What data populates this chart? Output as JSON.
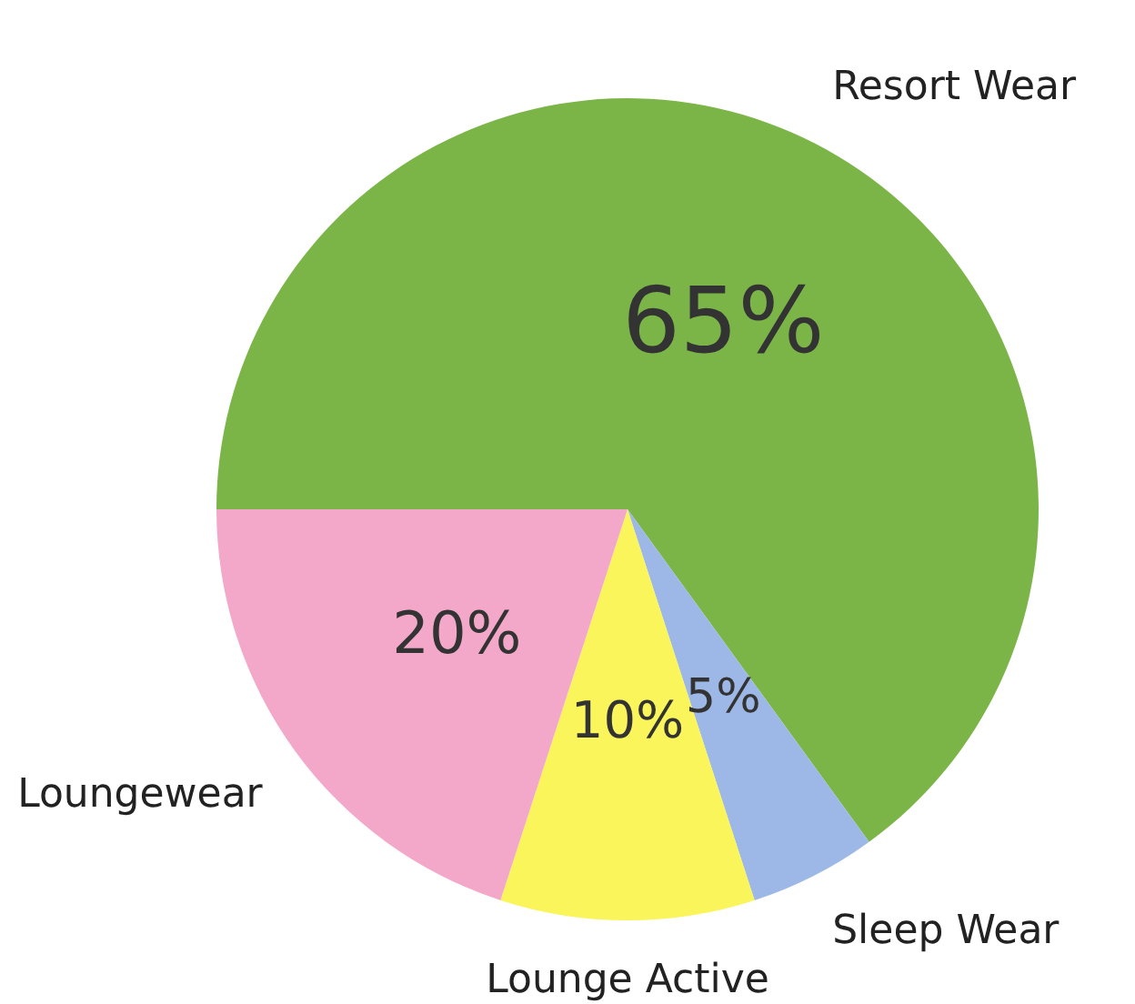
{
  "chart_data": {
    "type": "pie",
    "categories": [
      "Resort Wear",
      "Sleep Wear",
      "Lounge Active",
      "Loungewear"
    ],
    "values": [
      65,
      5,
      10,
      20
    ],
    "value_labels": [
      "65%",
      "5%",
      "10%",
      "20%"
    ],
    "colors": [
      "#7bb548",
      "#9db8e6",
      "#f9f55a",
      "#f3a8c9"
    ],
    "legend": false
  }
}
